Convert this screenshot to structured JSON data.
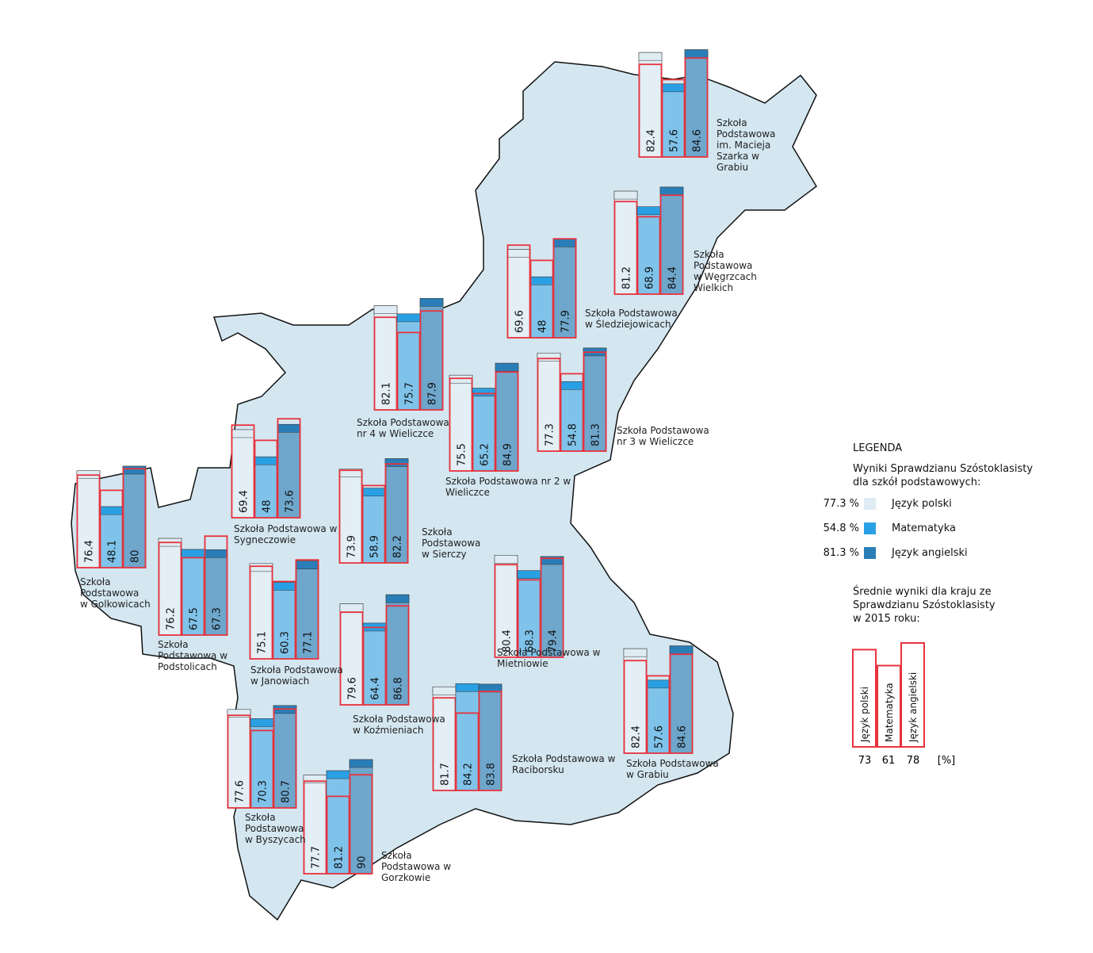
{
  "colors": {
    "region_fill": "#d4e7f1",
    "region_stroke": "#111111",
    "polski": "#dfecf4",
    "matematyka": "#2aa0e4",
    "angielski": "#2a7eb8",
    "polski_bar": "#e3eef5",
    "matematyka_bar": "#7fc3ea",
    "angielski_bar": "#6ea6cc",
    "national_outline": "#e8323c"
  },
  "national": {
    "polski": 73,
    "matematyka": 61,
    "angielski": 78
  },
  "schools": [
    {
      "name": "Szkoła\nPodstawowa\nim. Macieja\nSzarka w\nGrabiu",
      "values": [
        "82.4",
        "57.6",
        "84.6"
      ]
    },
    {
      "name": "Szkoła\nPodstawowa\nw Węgrzcach\nWielkich",
      "values": [
        "81.2",
        "68.9",
        "84.4"
      ]
    },
    {
      "name": "Szkoła Podstawowa\nw Śledziejowicach",
      "values": [
        "69.6",
        "48",
        "77.9"
      ]
    },
    {
      "name": "Szkoła Podstawowa\nnr 4 w Wieliczce",
      "values": [
        "82.1",
        "75.7",
        "87.9"
      ]
    },
    {
      "name": "Szkoła Podstawowa\nnr 3 w Wieliczce",
      "values": [
        "77.3",
        "54.8",
        "81.3"
      ]
    },
    {
      "name": "Szkoła Podstawowa nr 2 w\nWieliczce",
      "values": [
        "75.5",
        "65.2",
        "84.9"
      ]
    },
    {
      "name": "Szkoła Podstawowa w\nSygneczowie",
      "values": [
        "69.4",
        "48",
        "73.6"
      ]
    },
    {
      "name": "Szkoła\nPodstawowa\nw Sierczy",
      "values": [
        "73.9",
        "58.9",
        "82.2"
      ]
    },
    {
      "name": "Szkoła\nPodstawowa\nw Golkowicach",
      "values": [
        "76.4",
        "48.1",
        "80"
      ]
    },
    {
      "name": "Szkoła\nPodstawowa w\nPodstolicach",
      "values": [
        "76.2",
        "67.5",
        "67.3"
      ]
    },
    {
      "name": "Szkoła Podstawowa\nw Janowiach",
      "values": [
        "75.1",
        "60.3",
        "77.1"
      ]
    },
    {
      "name": "Szkoła Podstawowa w\nMietniowie",
      "values": [
        "80.4",
        "68.3",
        "79.4"
      ]
    },
    {
      "name": "Szkoła Podstawowa\nw Koźmieniach",
      "values": [
        "79.6",
        "64.4",
        "86.8"
      ]
    },
    {
      "name": "Szkoła Podstawowa w\nRaciborsku",
      "values": [
        "81.7",
        "84.2",
        "83.8"
      ]
    },
    {
      "name": "Szkoła Podstawowa\nw Grabiu",
      "values": [
        "82.4",
        "57.6",
        "84.6"
      ]
    },
    {
      "name": "Szkoła\nPodstawowa\nw Byszycach",
      "values": [
        "77.6",
        "70.3",
        "80.7"
      ]
    },
    {
      "name": "Szkoła\nPodstawowa w\nGorzkowie",
      "values": [
        "77.7",
        "81.2",
        "90"
      ]
    }
  ],
  "legend": {
    "title": "LEGENDA",
    "subtitle": "Wyniki Sprawdzianu Szóstoklasisty\ndla szkół podstawowych:",
    "items": [
      {
        "value": "77.3 %",
        "label": "Język polski"
      },
      {
        "value": "54.8 %",
        "label": "Matematyka"
      },
      {
        "value": "81.3 %",
        "label": "Język angielski"
      }
    ],
    "national_title": "Średnie wyniki dla kraju ze\nSprawdzianu Szóstoklasisty\nw 2015 roku:",
    "national_bars": [
      "Język polski",
      "Matematyka",
      "Język angielski"
    ],
    "national_values": [
      "73",
      "61",
      "78"
    ],
    "unit": "[%]"
  }
}
